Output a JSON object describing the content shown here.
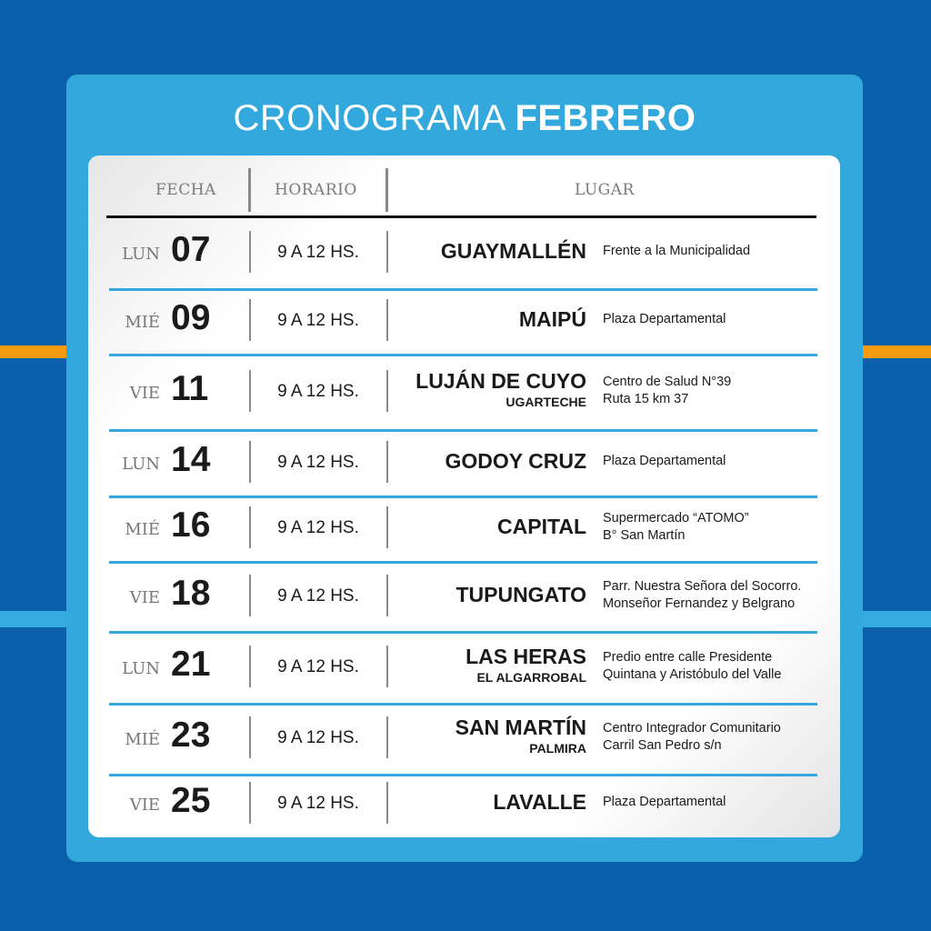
{
  "title": {
    "light": "CRONOGRAMA",
    "bold": "FEBRERO"
  },
  "headers": {
    "fecha": "FECHA",
    "horario": "HORARIO",
    "lugar": "LUGAR"
  },
  "colors": {
    "background": "#0b60ac",
    "panel": "#32a8dc",
    "accent_orange": "#f39a10",
    "row_divider": "#36a6dc"
  },
  "rows": [
    {
      "dow": "LUN",
      "day": "07",
      "time": "9 A 12 HS.",
      "place": "GUAYMALLÉN",
      "sub": "",
      "addr1": "Frente a la Municipalidad",
      "addr2": ""
    },
    {
      "dow": "MIÉ",
      "day": "09",
      "time": "9 A 12 HS.",
      "place": "MAIPÚ",
      "sub": "",
      "addr1": "Plaza Departamental",
      "addr2": ""
    },
    {
      "dow": "VIE",
      "day": "11",
      "time": "9 A 12 HS.",
      "place": "LUJÁN DE CUYO",
      "sub": "UGARTECHE",
      "addr1": "Centro de Salud N°39",
      "addr2": "Ruta 15 km 37"
    },
    {
      "dow": "LUN",
      "day": "14",
      "time": "9 A 12 HS.",
      "place": "GODOY CRUZ",
      "sub": "",
      "addr1": "Plaza Departamental",
      "addr2": ""
    },
    {
      "dow": "MIÉ",
      "day": "16",
      "time": "9 A 12 HS.",
      "place": "CAPITAL",
      "sub": "",
      "addr1": "Supermercado “ATOMO”",
      "addr2": "B° San Martín"
    },
    {
      "dow": "VIE",
      "day": "18",
      "time": "9 A 12 HS.",
      "place": "TUPUNGATO",
      "sub": "",
      "addr1": "Parr. Nuestra Señora del Socorro.",
      "addr2": "Monseñor Fernandez y Belgrano"
    },
    {
      "dow": "LUN",
      "day": "21",
      "time": "9 A 12 HS.",
      "place": "LAS HERAS",
      "sub": "EL ALGARROBAL",
      "addr1": "Predio entre calle Presidente",
      "addr2": "Quintana y Aristóbulo del Valle"
    },
    {
      "dow": "MIÉ",
      "day": "23",
      "time": "9 A 12 HS.",
      "place": "SAN MARTÍN",
      "sub": "PALMIRA",
      "addr1": "Centro Integrador Comunitario",
      "addr2": "Carril San Pedro s/n"
    },
    {
      "dow": "VIE",
      "day": "25",
      "time": "9 A 12 HS.",
      "place": "LAVALLE",
      "sub": "",
      "addr1": "Plaza Departamental",
      "addr2": ""
    }
  ]
}
